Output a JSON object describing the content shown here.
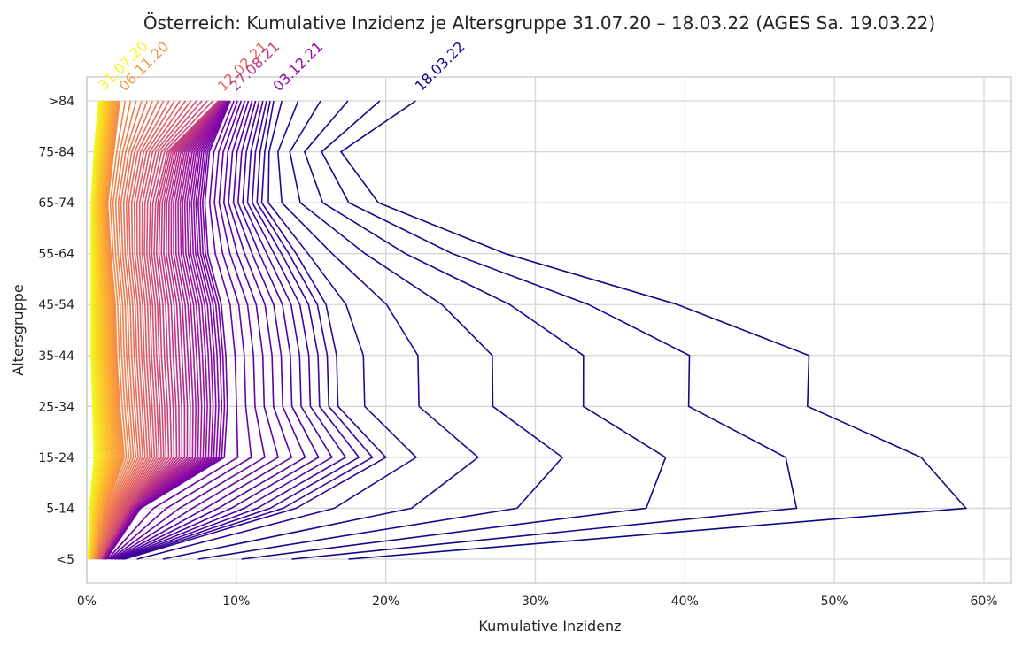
{
  "chart_data": {
    "type": "line",
    "title": "Österreich: Kumulative Inzidenz je Altersgruppe 31.07.20 – 18.03.22 (AGES Sa. 19.03.22)",
    "xlabel": "Kumulative Inzidenz",
    "ylabel": "Altersgruppe",
    "categories": [
      "<5",
      "5-14",
      "15-24",
      "25-34",
      "35-44",
      "45-54",
      "55-64",
      "65-74",
      "75-84",
      ">84"
    ],
    "xlim": [
      0,
      62
    ],
    "x_ticks": [
      "0%",
      "10%",
      "20%",
      "30%",
      "40%",
      "50%",
      "60%"
    ],
    "grid": true,
    "colormap": "plasma-reversed",
    "series": [
      {
        "label": "31.07.20",
        "color": "#f0f921",
        "values": [
          0.1,
          0.2,
          0.5,
          0.4,
          0.3,
          0.3,
          0.3,
          0.3,
          0.5,
          0.8
        ]
      },
      {
        "label": "06.11.20",
        "color": "#f89540",
        "values": [
          0.6,
          1.3,
          2.5,
          2.2,
          2.0,
          1.9,
          1.6,
          1.4,
          1.8,
          2.2
        ]
      },
      {
        "label": "12.02.21",
        "color": "#e16462",
        "values": [
          1.0,
          2.8,
          5.3,
          5.2,
          5.0,
          4.9,
          4.5,
          4.6,
          5.4,
          8.8
        ]
      },
      {
        "label": "27.08.21",
        "color": "#c03a83",
        "values": [
          1.3,
          3.6,
          9.2,
          9.4,
          9.3,
          9.0,
          8.1,
          7.9,
          8.2,
          9.6
        ]
      },
      {
        "label": "03.12.21",
        "color": "#8f0da4",
        "values": [
          2.5,
          14.0,
          20.0,
          16.8,
          16.7,
          16.0,
          14.0,
          11.7,
          11.9,
          12.5
        ]
      },
      {
        "label": "18.03.22",
        "color": "#0d0887",
        "values": [
          17.5,
          58.8,
          55.8,
          48.2,
          48.3,
          39.5,
          28.0,
          19.5,
          17.0,
          22.0
        ]
      }
    ],
    "intermediate_series_count": 80
  }
}
